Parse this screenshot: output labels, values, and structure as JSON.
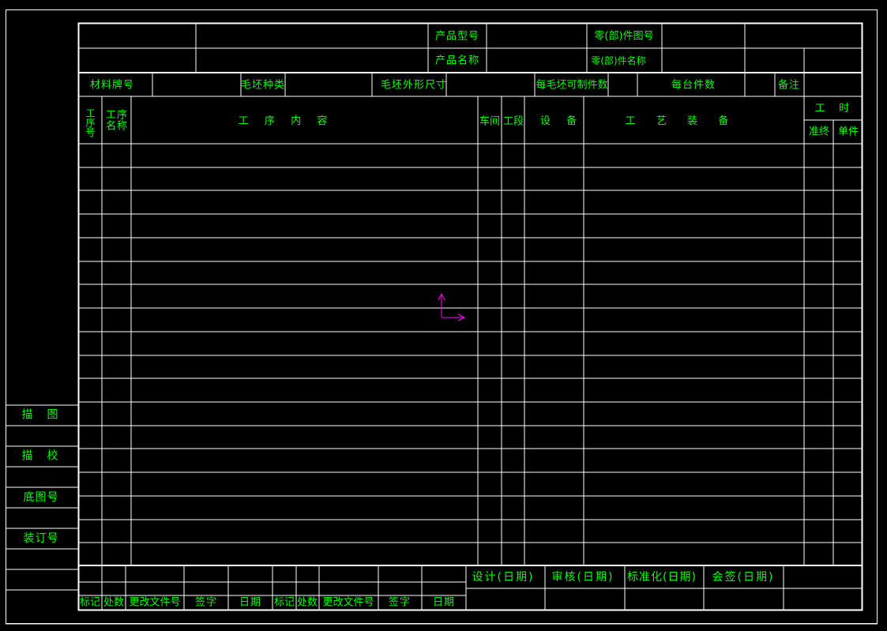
{
  "header": {
    "product_model": "产品型号",
    "product_name": "产品名称",
    "part_drawing_no": "零(部)件图号",
    "part_name": "零(部)件名称"
  },
  "material_row": {
    "material_grade": "材料牌号",
    "blank_type": "毛坯种类",
    "blank_dimensions": "毛坯外形尺寸",
    "parts_per_blank": "每毛坯可制件数",
    "parts_per_unit": "每台件数",
    "remarks": "备注"
  },
  "columns": {
    "op_no": "工序号",
    "op_name": "工序\n名称",
    "op_content": "工  序  内  容",
    "workshop": "车间",
    "section": "工段",
    "equipment": "设  备",
    "tooling": "工  艺  装  备",
    "man_hours": "工  时",
    "setup": "准终",
    "unit": "单件"
  },
  "revision": {
    "mark": "标记",
    "count": "处数",
    "change_doc_no": "更改文件号",
    "signature": "签字",
    "date": "日期"
  },
  "approvals": {
    "design": "设计(日期)",
    "review": "审核(日期)",
    "standardization": "标准化(日期)",
    "countersign": "会签(日期)"
  },
  "side_strip": {
    "tracing": "描  图",
    "trace_check": "描  校",
    "base_drawing_no": "底图号",
    "binding_no": "装订号"
  },
  "colors": {
    "text": "#00ff00",
    "lines": "#ffffff",
    "ucs": "#ff00ff",
    "background": "#000000"
  },
  "icons": {
    "ucs": "ucs-axis-icon"
  }
}
